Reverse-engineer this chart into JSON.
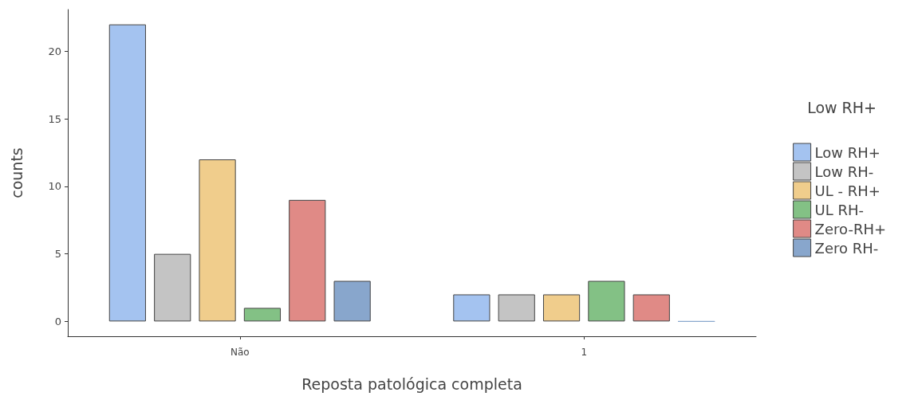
{
  "chart_data": {
    "type": "bar",
    "xlabel": "Reposta patológica completa",
    "ylabel": "counts",
    "legend_title": "Low RH+",
    "categories": [
      "Não",
      "1"
    ],
    "series": [
      {
        "name": "Low RH+",
        "color": "#a4c3f0",
        "values": [
          22,
          2
        ]
      },
      {
        "name": "Low RH-",
        "color": "#c4c4c4",
        "values": [
          5,
          2
        ]
      },
      {
        "name": "UL - RH+",
        "color": "#f0cd8c",
        "values": [
          12,
          2
        ]
      },
      {
        "name": "UL RH-",
        "color": "#83c185",
        "values": [
          1,
          3
        ]
      },
      {
        "name": "Zero-RH+",
        "color": "#e08a86",
        "values": [
          9,
          2
        ]
      },
      {
        "name": "Zero RH-",
        "color": "#88a6cc",
        "values": [
          3,
          0
        ]
      }
    ],
    "ylim": [
      -1.1,
      23.1
    ],
    "yticks": [
      0,
      5,
      10,
      15,
      20
    ],
    "grid": false,
    "legend": "right"
  }
}
